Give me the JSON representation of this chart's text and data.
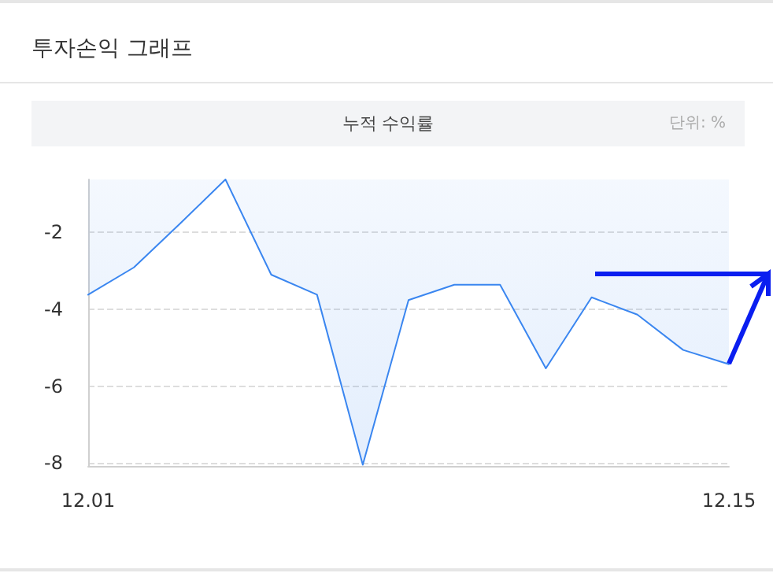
{
  "chart_data": {
    "type": "area",
    "title": "투자손익 그래프",
    "subtitle": "누적 수익률",
    "annotations": [
      "단위: %"
    ],
    "categories": [
      "12.01",
      null,
      null,
      null,
      null,
      null,
      null,
      null,
      null,
      null,
      null,
      null,
      null,
      null,
      "12.15"
    ],
    "series": [
      {
        "color": "#3a86f0",
        "values": [
          -3.62,
          -2.91,
          -1.78,
          -0.62,
          -3.1,
          -3.62,
          -8.05,
          -3.76,
          -3.36,
          -3.36,
          -5.54,
          -3.69,
          -4.14,
          -5.06,
          -5.43
        ]
      }
    ],
    "ylim": [
      -8.08,
      -0.62
    ],
    "yticks": [
      -2,
      -4,
      -6,
      -8
    ],
    "grid": "y",
    "marker": "none",
    "line_style": "solid"
  }
}
